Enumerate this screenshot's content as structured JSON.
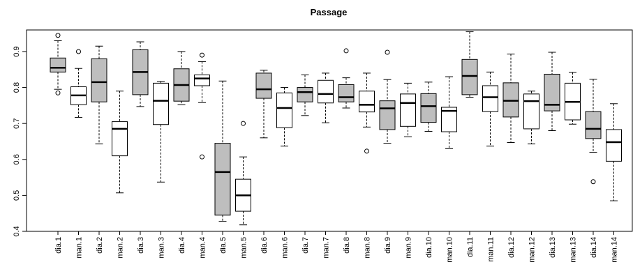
{
  "chart_data": {
    "type": "box",
    "title": "Passage",
    "xlabel": "",
    "ylabel": "",
    "ylim": [
      0.4,
      0.96
    ],
    "yticks": [
      0.4,
      0.5,
      0.6,
      0.7,
      0.8,
      0.9
    ],
    "ytick_labels": [
      "0.4",
      "0.5",
      "0.6",
      "0.7",
      "0.8",
      "0.9"
    ],
    "colors": {
      "dia": "#bebebe",
      "man": "#ffffff"
    },
    "boxes": [
      {
        "label": "dia.1",
        "min": 0.795,
        "q1": 0.843,
        "median": 0.855,
        "q3": 0.882,
        "max": 0.93,
        "outliers": [
          0.945,
          0.785
        ]
      },
      {
        "label": "man.1",
        "min": 0.717,
        "q1": 0.752,
        "median": 0.778,
        "q3": 0.802,
        "max": 0.853,
        "outliers": [
          0.9
        ]
      },
      {
        "label": "dia.2",
        "min": 0.643,
        "q1": 0.76,
        "median": 0.815,
        "q3": 0.88,
        "max": 0.915,
        "outliers": []
      },
      {
        "label": "man.2",
        "min": 0.507,
        "q1": 0.61,
        "median": 0.685,
        "q3": 0.705,
        "max": 0.79,
        "outliers": []
      },
      {
        "label": "dia.3",
        "min": 0.747,
        "q1": 0.78,
        "median": 0.843,
        "q3": 0.905,
        "max": 0.927,
        "outliers": []
      },
      {
        "label": "man.3",
        "min": 0.537,
        "q1": 0.697,
        "median": 0.763,
        "q3": 0.812,
        "max": 0.817,
        "outliers": []
      },
      {
        "label": "dia.4",
        "min": 0.752,
        "q1": 0.762,
        "median": 0.807,
        "q3": 0.852,
        "max": 0.9,
        "outliers": []
      },
      {
        "label": "man.4",
        "min": 0.758,
        "q1": 0.805,
        "median": 0.825,
        "q3": 0.835,
        "max": 0.872,
        "outliers": [
          0.89,
          0.607
        ]
      },
      {
        "label": "dia.5",
        "min": 0.428,
        "q1": 0.445,
        "median": 0.565,
        "q3": 0.645,
        "max": 0.818,
        "outliers": []
      },
      {
        "label": "man.5",
        "min": 0.418,
        "q1": 0.456,
        "median": 0.5,
        "q3": 0.545,
        "max": 0.607,
        "outliers": [
          0.7
        ]
      },
      {
        "label": "dia.6",
        "min": 0.66,
        "q1": 0.77,
        "median": 0.795,
        "q3": 0.84,
        "max": 0.848,
        "outliers": []
      },
      {
        "label": "man.6",
        "min": 0.637,
        "q1": 0.688,
        "median": 0.743,
        "q3": 0.785,
        "max": 0.8,
        "outliers": []
      },
      {
        "label": "dia.7",
        "min": 0.722,
        "q1": 0.76,
        "median": 0.787,
        "q3": 0.8,
        "max": 0.835,
        "outliers": []
      },
      {
        "label": "man.7",
        "min": 0.702,
        "q1": 0.757,
        "median": 0.782,
        "q3": 0.82,
        "max": 0.84,
        "outliers": []
      },
      {
        "label": "dia.8",
        "min": 0.743,
        "q1": 0.76,
        "median": 0.773,
        "q3": 0.808,
        "max": 0.827,
        "outliers": [
          0.902
        ]
      },
      {
        "label": "man.8",
        "min": 0.69,
        "q1": 0.732,
        "median": 0.752,
        "q3": 0.79,
        "max": 0.84,
        "outliers": [
          0.623
        ]
      },
      {
        "label": "dia.9",
        "min": 0.645,
        "q1": 0.683,
        "median": 0.742,
        "q3": 0.763,
        "max": 0.822,
        "outliers": [
          0.898
        ]
      },
      {
        "label": "man.9",
        "min": 0.663,
        "q1": 0.692,
        "median": 0.757,
        "q3": 0.782,
        "max": 0.812,
        "outliers": []
      },
      {
        "label": "dia.10",
        "min": 0.678,
        "q1": 0.703,
        "median": 0.748,
        "q3": 0.783,
        "max": 0.815,
        "outliers": []
      },
      {
        "label": "man.10",
        "min": 0.63,
        "q1": 0.677,
        "median": 0.735,
        "q3": 0.745,
        "max": 0.83,
        "outliers": []
      },
      {
        "label": "dia.11",
        "min": 0.773,
        "q1": 0.78,
        "median": 0.832,
        "q3": 0.878,
        "max": 0.955,
        "outliers": []
      },
      {
        "label": "man.11",
        "min": 0.637,
        "q1": 0.733,
        "median": 0.773,
        "q3": 0.805,
        "max": 0.843,
        "outliers": []
      },
      {
        "label": "dia.12",
        "min": 0.647,
        "q1": 0.718,
        "median": 0.763,
        "q3": 0.813,
        "max": 0.893,
        "outliers": []
      },
      {
        "label": "man.12",
        "min": 0.643,
        "q1": 0.685,
        "median": 0.762,
        "q3": 0.782,
        "max": 0.79,
        "outliers": []
      },
      {
        "label": "dia.13",
        "min": 0.68,
        "q1": 0.735,
        "median": 0.752,
        "q3": 0.837,
        "max": 0.898,
        "outliers": []
      },
      {
        "label": "man.13",
        "min": 0.698,
        "q1": 0.71,
        "median": 0.76,
        "q3": 0.812,
        "max": 0.842,
        "outliers": []
      },
      {
        "label": "dia.14",
        "min": 0.62,
        "q1": 0.658,
        "median": 0.685,
        "q3": 0.733,
        "max": 0.823,
        "outliers": [
          0.538
        ]
      },
      {
        "label": "man.14",
        "min": 0.485,
        "q1": 0.595,
        "median": 0.648,
        "q3": 0.683,
        "max": 0.755,
        "outliers": []
      }
    ]
  }
}
